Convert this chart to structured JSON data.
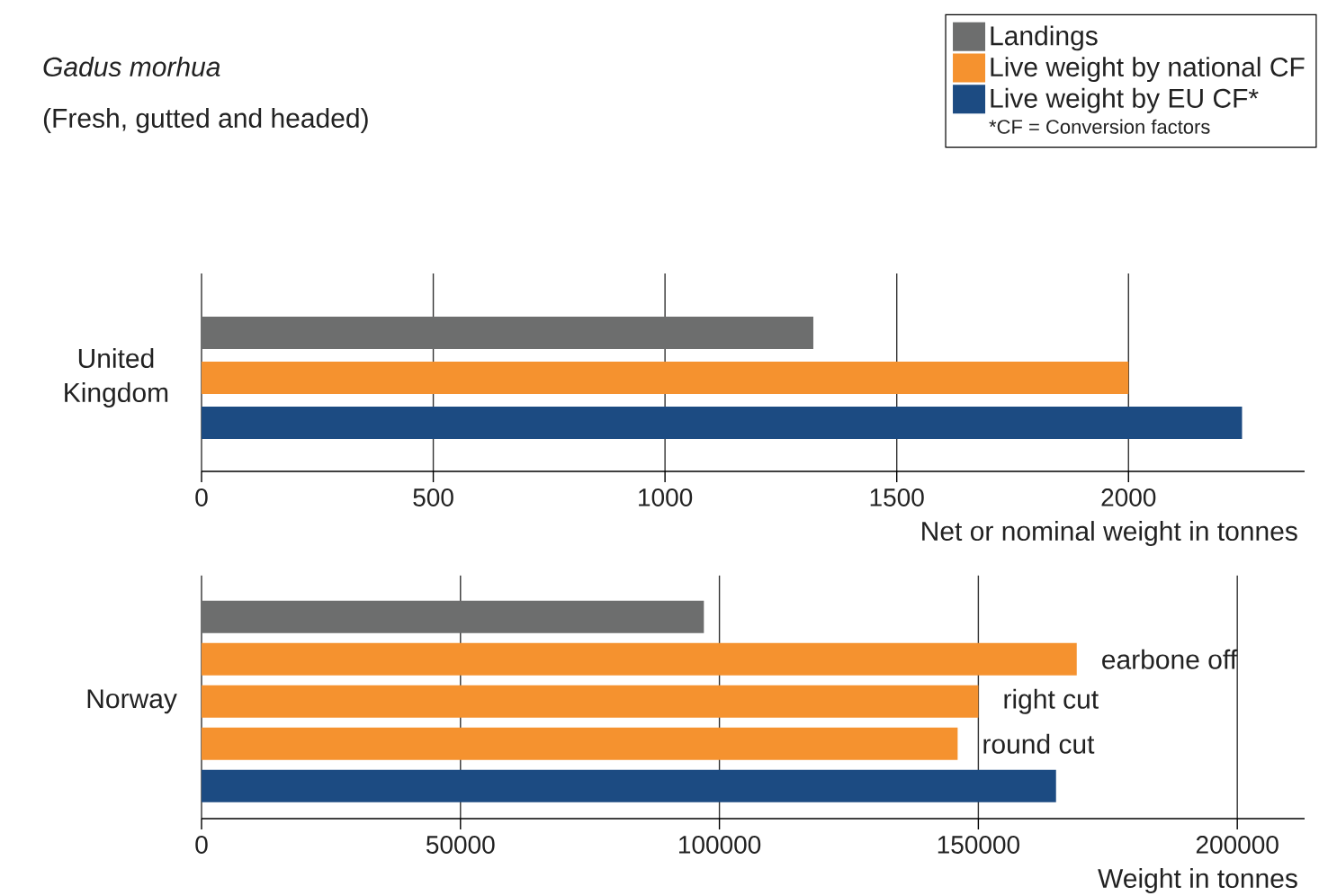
{
  "chart_data": [
    {
      "type": "bar",
      "orientation": "horizontal",
      "title": "Gadus morhua",
      "subtitle": "(Fresh, gutted and headed)",
      "categories": [
        "United Kingdom"
      ],
      "series": [
        {
          "name": "Landings",
          "color": "#6d6e6e",
          "values": [
            1320
          ]
        },
        {
          "name": "Live weight by national CF",
          "color": "#f5922f",
          "values": [
            2000
          ]
        },
        {
          "name": "Live weight by EU CF*",
          "color": "#1c4b82",
          "values": [
            2245
          ]
        }
      ],
      "xlim": [
        0,
        2380
      ],
      "xticks": [
        0,
        500,
        1000,
        1500,
        2000
      ],
      "xlabel": "Net or nominal weight in tonnes",
      "grid": "x",
      "legend": "top right",
      "annotations": [
        "*CF = Conversion factors"
      ]
    },
    {
      "type": "bar",
      "orientation": "horizontal",
      "categories": [
        null,
        null,
        null,
        null,
        null
      ],
      "ylabel": "Norway",
      "series": [
        {
          "color": "#6d6e6e",
          "values": [
            97000,
            null,
            null,
            null,
            null
          ]
        },
        {
          "color": "#f5922f",
          "values": [
            null,
            169000,
            150000,
            146000,
            null
          ],
          "value_labels": [
            null,
            "earbone off",
            "right cut",
            "round cut",
            null
          ]
        },
        {
          "color": "#1c4b82",
          "values": [
            null,
            null,
            null,
            null,
            165000
          ]
        }
      ],
      "xlim": [
        0,
        213000
      ],
      "xticks": [
        0,
        50000,
        100000,
        150000,
        200000
      ],
      "xlabel": "Weight in tonnes",
      "grid": "x"
    }
  ]
}
